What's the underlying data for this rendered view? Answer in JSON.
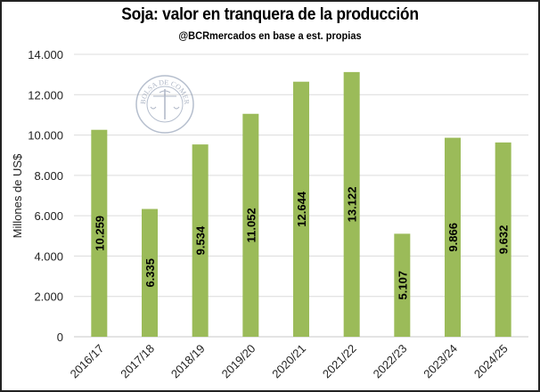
{
  "chart_data": {
    "type": "bar",
    "title": "Soja: valor en tranquera de la producción",
    "subtitle": "@BCRmercados en base a est. propias",
    "ylabel": "Millones de US$",
    "xlabel": "",
    "categories": [
      "2016/17",
      "2017/18",
      "2018/19",
      "2019/20",
      "2020/21",
      "2021/22",
      "2022/23",
      "2023/24",
      "2024/25"
    ],
    "values": [
      10259,
      6335,
      9534,
      11052,
      12644,
      13122,
      5107,
      9866,
      9632
    ],
    "data_labels": [
      "10.259",
      "6.335",
      "9.534",
      "11.052",
      "12.644",
      "13.122",
      "5.107",
      "9.866",
      "9.632"
    ],
    "ylim": [
      0,
      14000
    ],
    "yticks": [
      0,
      2000,
      4000,
      6000,
      8000,
      10000,
      12000,
      14000
    ],
    "ytick_labels": [
      "0",
      "2.000",
      "4.000",
      "6.000",
      "8.000",
      "10.000",
      "12.000",
      "14.000"
    ],
    "grid": true,
    "bar_color": "#9bbb59",
    "watermark": "BOLSA DE COMERCIO DE ROSARIO"
  }
}
